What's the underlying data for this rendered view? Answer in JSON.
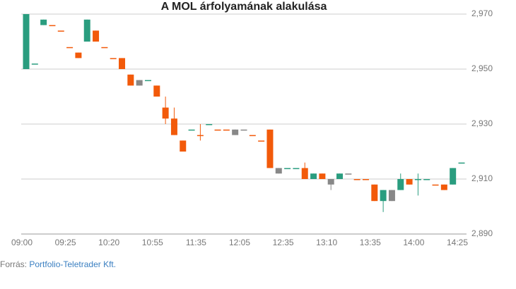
{
  "chart_data": {
    "type": "candlestick",
    "title": "A MOL árfolyamának alakulása",
    "categories": [
      "09:00",
      null,
      null,
      null,
      null,
      "09:25",
      null,
      null,
      null,
      null,
      "10:20",
      null,
      null,
      null,
      null,
      "10:55",
      null,
      null,
      null,
      null,
      "11:35",
      null,
      null,
      null,
      null,
      "12:05",
      null,
      null,
      null,
      null,
      "12:35",
      null,
      null,
      null,
      null,
      "13:10",
      null,
      null,
      null,
      null,
      "13:35",
      null,
      null,
      null,
      null,
      "14:00",
      null,
      null,
      null,
      null,
      "14:25"
    ],
    "open": [
      2950,
      2952,
      2966,
      2966,
      2964,
      2958,
      2956,
      2960,
      2964,
      2958,
      2954,
      2954,
      2948,
      2946,
      2946,
      2944,
      2936,
      2932,
      2924,
      2928,
      2926,
      2930,
      2928,
      2928,
      2928,
      2928,
      2926,
      2924,
      2928,
      2914,
      2914,
      2914,
      2914,
      2912,
      2912,
      2910,
      2910,
      2912,
      2910,
      2910,
      2908,
      2902,
      2906,
      2906,
      2910,
      2910,
      2910,
      2908,
      2908,
      2908,
      2916
    ],
    "high": [
      2970,
      2952,
      2968,
      2966,
      2964,
      2958,
      2956,
      2968,
      2964,
      2958,
      2954,
      2954,
      2948,
      2946,
      2946,
      2944,
      2940,
      2936,
      2924,
      2928,
      2930,
      2930,
      2928,
      2928,
      2928,
      2928,
      2926,
      2924,
      2928,
      2914,
      2914,
      2914,
      2916,
      2912,
      2912,
      2910,
      2912,
      2912,
      2910,
      2910,
      2908,
      2906,
      2906,
      2912,
      2910,
      2912,
      2910,
      2908,
      2908,
      2914,
      2916
    ],
    "low": [
      2950,
      2952,
      2966,
      2966,
      2964,
      2958,
      2954,
      2960,
      2960,
      2958,
      2954,
      2950,
      2944,
      2944,
      2946,
      2940,
      2930,
      2926,
      2920,
      2928,
      2924,
      2930,
      2928,
      2928,
      2926,
      2928,
      2926,
      2924,
      2914,
      2912,
      2914,
      2914,
      2910,
      2910,
      2910,
      2906,
      2910,
      2912,
      2910,
      2910,
      2902,
      2898,
      2902,
      2906,
      2908,
      2904,
      2910,
      2908,
      2906,
      2908,
      2916
    ],
    "close": [
      2970,
      2952,
      2968,
      2966,
      2964,
      2958,
      2954,
      2968,
      2960,
      2958,
      2954,
      2950,
      2944,
      2944,
      2946,
      2940,
      2932,
      2926,
      2920,
      2928,
      2926,
      2930,
      2928,
      2928,
      2926,
      2928,
      2926,
      2924,
      2914,
      2912,
      2914,
      2914,
      2910,
      2910,
      2910,
      2908,
      2912,
      2912,
      2910,
      2910,
      2902,
      2906,
      2902,
      2910,
      2908,
      2910,
      2910,
      2908,
      2906,
      2914,
      2916
    ],
    "colors": [
      "#2a9d7f",
      "#2a9d7f",
      "#2a9d7f",
      "#f25a0a",
      "#f25a0a",
      "#f25a0a",
      "#f25a0a",
      "#2a9d7f",
      "#f25a0a",
      "#f25a0a",
      "#f25a0a",
      "#f25a0a",
      "#f25a0a",
      "#888888",
      "#2a9d7f",
      "#f25a0a",
      "#f25a0a",
      "#f25a0a",
      "#f25a0a",
      "#2a9d7f",
      "#f25a0a",
      "#2a9d7f",
      "#f25a0a",
      "#f25a0a",
      "#888888",
      "#888888",
      "#f25a0a",
      "#f25a0a",
      "#f25a0a",
      "#888888",
      "#2a9d7f",
      "#2a9d7f",
      "#f25a0a",
      "#2a9d7f",
      "#f25a0a",
      "#888888",
      "#2a9d7f",
      "#888888",
      "#f25a0a",
      "#f25a0a",
      "#f25a0a",
      "#2a9d7f",
      "#888888",
      "#2a9d7f",
      "#f25a0a",
      "#2a9d7f",
      "#2a9d7f",
      "#f25a0a",
      "#f25a0a",
      "#2a9d7f",
      "#2a9d7f"
    ],
    "ylim": [
      2890,
      2970
    ],
    "yticks": [
      {
        "value": 2890,
        "label": "2,890"
      },
      {
        "value": 2910,
        "label": "2,910"
      },
      {
        "value": 2930,
        "label": "2,930"
      },
      {
        "value": 2950,
        "label": "2,950"
      },
      {
        "value": 2970,
        "label": "2,970"
      }
    ],
    "grid": true
  },
  "source": {
    "prefix": "Forrás:",
    "link": "Portfolio-Teletrader Kft."
  }
}
